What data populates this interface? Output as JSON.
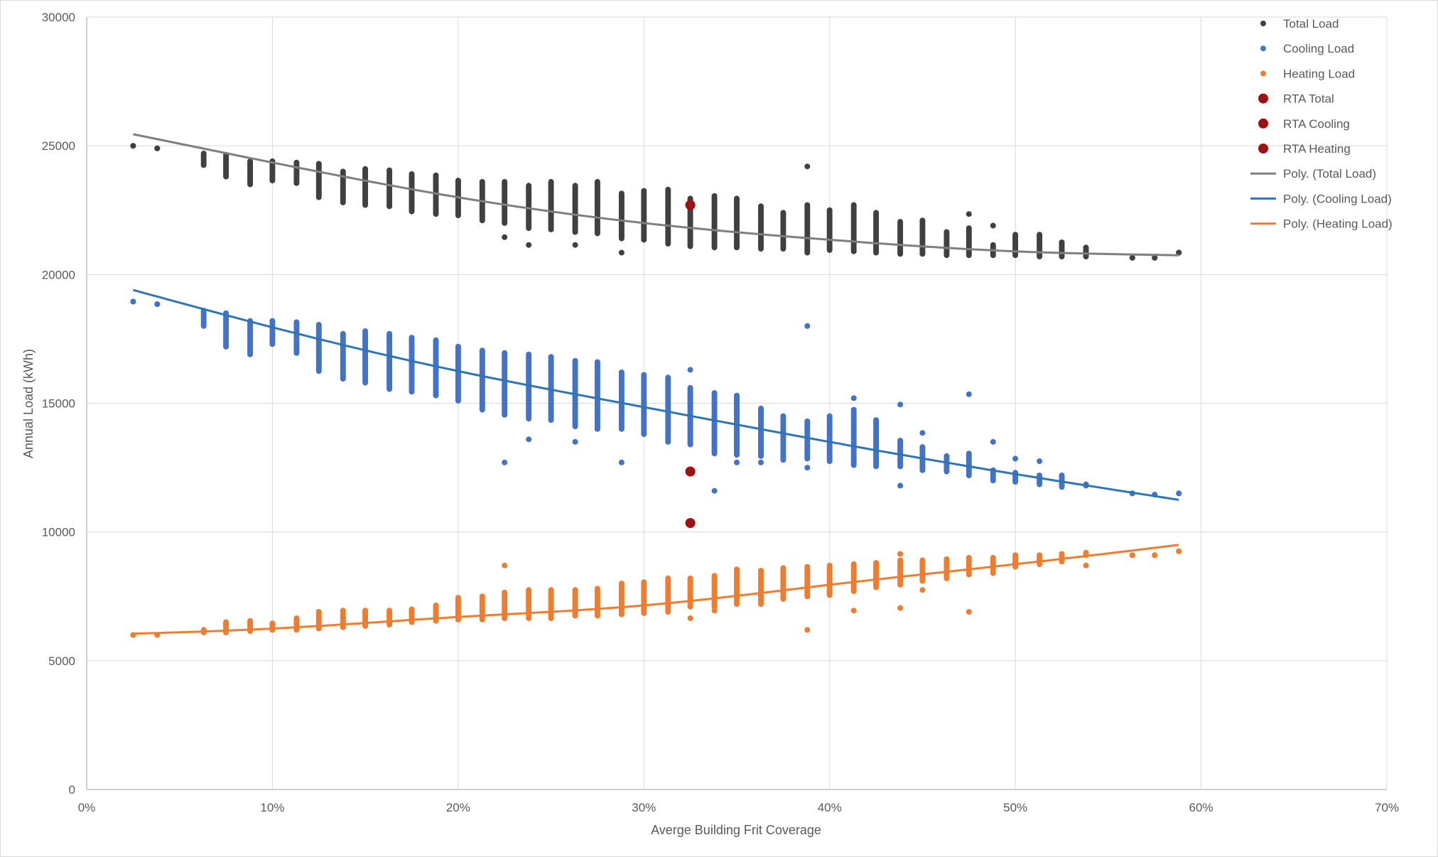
{
  "colors": {
    "total": "#404040",
    "cooling": "#4472C4",
    "heating": "#ED7D31",
    "rta_fill": "#8B1A1A",
    "rta_edge": "#C00000",
    "total_trend": "#7F7F7F",
    "cooling_trend": "#2E75B6",
    "heating_trend": "#ED7D31",
    "grid": "#D9D9D9",
    "axis": "#BFBFBF"
  },
  "chart_data": {
    "type": "scatter",
    "title": "",
    "xlabel": "Averge Building Frit Coverage",
    "ylabel": "Annual Load (kWh)",
    "xlim": [
      0,
      0.7
    ],
    "ylim": [
      0,
      30000
    ],
    "x_ticks": [
      0,
      0.1,
      0.2,
      0.3,
      0.4,
      0.5,
      0.6,
      0.7
    ],
    "x_tick_labels": [
      "0%",
      "10%",
      "20%",
      "30%",
      "40%",
      "50%",
      "60%",
      "70%"
    ],
    "y_ticks": [
      0,
      5000,
      10000,
      15000,
      20000,
      25000,
      30000
    ],
    "y_tick_labels": [
      "0",
      "5000",
      "10000",
      "15000",
      "20000",
      "25000",
      "30000"
    ],
    "grid": true,
    "legend_position": "top-right",
    "legend": [
      "Total Load",
      "Cooling Load",
      "Heating Load",
      "RTA Total",
      "RTA Cooling",
      "RTA Heating",
      "Poly. (Total Load)",
      "Poly. (Cooling Load)",
      "Poly. (Heating Load)"
    ],
    "x_columns": [
      0.025,
      0.038,
      0.063,
      0.075,
      0.088,
      0.1,
      0.113,
      0.125,
      0.138,
      0.15,
      0.163,
      0.175,
      0.188,
      0.2,
      0.213,
      0.225,
      0.238,
      0.25,
      0.263,
      0.275,
      0.288,
      0.3,
      0.313,
      0.325,
      0.338,
      0.35,
      0.363,
      0.375,
      0.388,
      0.4,
      0.413,
      0.425,
      0.438,
      0.45,
      0.463,
      0.475,
      0.488,
      0.5,
      0.513,
      0.525,
      0.538,
      0.563,
      0.575,
      0.588
    ],
    "series": [
      {
        "name": "Total Load",
        "ranges": [
          [
            25000,
            25000
          ],
          [
            24900,
            24900
          ],
          [
            24250,
            24700
          ],
          [
            23800,
            24650
          ],
          [
            23500,
            24400
          ],
          [
            23650,
            24400
          ],
          [
            23550,
            24350
          ],
          [
            23000,
            24300
          ],
          [
            22800,
            24000
          ],
          [
            22700,
            24100
          ],
          [
            22650,
            24050
          ],
          [
            22450,
            23900
          ],
          [
            22350,
            23850
          ],
          [
            22300,
            23650
          ],
          [
            22100,
            23600
          ],
          [
            22000,
            23600
          ],
          [
            21800,
            23450
          ],
          [
            21750,
            23600
          ],
          [
            21650,
            23450
          ],
          [
            21600,
            23600
          ],
          [
            21400,
            23150
          ],
          [
            21350,
            23250
          ],
          [
            21200,
            23300
          ],
          [
            21100,
            22950
          ],
          [
            21050,
            23050
          ],
          [
            21050,
            22950
          ],
          [
            21000,
            22650
          ],
          [
            21000,
            22400
          ],
          [
            20850,
            22700
          ],
          [
            20950,
            22500
          ],
          [
            20900,
            22700
          ],
          [
            20850,
            22400
          ],
          [
            20800,
            22050
          ],
          [
            20800,
            22100
          ],
          [
            20750,
            21650
          ],
          [
            20750,
            21800
          ],
          [
            20750,
            21150
          ],
          [
            20750,
            21550
          ],
          [
            20700,
            21550
          ],
          [
            20700,
            21250
          ],
          [
            20700,
            21050
          ],
          [
            20650,
            20650
          ],
          [
            20650,
            20650
          ],
          [
            20850,
            20850
          ]
        ],
        "outliers": [
          [
            0.225,
            21450
          ],
          [
            0.238,
            21150
          ],
          [
            0.263,
            21150
          ],
          [
            0.288,
            20850
          ],
          [
            0.388,
            24200
          ],
          [
            0.475,
            22350
          ],
          [
            0.488,
            21900
          ]
        ]
      },
      {
        "name": "Cooling Load",
        "ranges": [
          [
            18950,
            18950
          ],
          [
            18850,
            18850
          ],
          [
            18000,
            18600
          ],
          [
            17200,
            18500
          ],
          [
            16900,
            18200
          ],
          [
            17300,
            18200
          ],
          [
            16950,
            18150
          ],
          [
            16250,
            18050
          ],
          [
            15950,
            17700
          ],
          [
            15800,
            17800
          ],
          [
            15550,
            17700
          ],
          [
            15450,
            17550
          ],
          [
            15300,
            17450
          ],
          [
            15100,
            17200
          ],
          [
            14750,
            17050
          ],
          [
            14550,
            16950
          ],
          [
            14400,
            16900
          ],
          [
            14350,
            16800
          ],
          [
            14100,
            16650
          ],
          [
            14000,
            16600
          ],
          [
            14000,
            16200
          ],
          [
            13800,
            16100
          ],
          [
            13500,
            16000
          ],
          [
            13400,
            15600
          ],
          [
            13050,
            15400
          ],
          [
            13000,
            15300
          ],
          [
            12950,
            14800
          ],
          [
            12800,
            14500
          ],
          [
            12850,
            14300
          ],
          [
            12750,
            14500
          ],
          [
            12600,
            14750
          ],
          [
            12550,
            14350
          ],
          [
            12550,
            13550
          ],
          [
            12400,
            13300
          ],
          [
            12350,
            12950
          ],
          [
            12200,
            13050
          ],
          [
            12000,
            12400
          ],
          [
            11950,
            12300
          ],
          [
            11850,
            12200
          ],
          [
            11750,
            12200
          ],
          [
            11800,
            11850
          ],
          [
            11500,
            11500
          ],
          [
            11450,
            11450
          ],
          [
            11500,
            11500
          ]
        ],
        "outliers": [
          [
            0.225,
            12700
          ],
          [
            0.238,
            13600
          ],
          [
            0.263,
            13500
          ],
          [
            0.288,
            12700
          ],
          [
            0.325,
            16300
          ],
          [
            0.338,
            11600
          ],
          [
            0.35,
            12700
          ],
          [
            0.363,
            12700
          ],
          [
            0.388,
            18000
          ],
          [
            0.388,
            12500
          ],
          [
            0.413,
            15200
          ],
          [
            0.438,
            14950
          ],
          [
            0.438,
            11800
          ],
          [
            0.45,
            13850
          ],
          [
            0.475,
            15350
          ],
          [
            0.488,
            13500
          ],
          [
            0.5,
            12850
          ],
          [
            0.513,
            12750
          ]
        ]
      },
      {
        "name": "Heating Load",
        "ranges": [
          [
            6000,
            6000
          ],
          [
            6000,
            6000
          ],
          [
            6100,
            6200
          ],
          [
            6100,
            6500
          ],
          [
            6150,
            6550
          ],
          [
            6200,
            6450
          ],
          [
            6200,
            6650
          ],
          [
            6250,
            6900
          ],
          [
            6300,
            6950
          ],
          [
            6350,
            6950
          ],
          [
            6400,
            6950
          ],
          [
            6500,
            7000
          ],
          [
            6550,
            7150
          ],
          [
            6600,
            7450
          ],
          [
            6600,
            7500
          ],
          [
            6650,
            7650
          ],
          [
            6650,
            7750
          ],
          [
            6650,
            7750
          ],
          [
            6750,
            7750
          ],
          [
            6750,
            7800
          ],
          [
            6800,
            8000
          ],
          [
            6850,
            8050
          ],
          [
            6900,
            8200
          ],
          [
            7100,
            8200
          ],
          [
            7100,
            8300
          ],
          [
            7200,
            8550
          ],
          [
            7200,
            8500
          ],
          [
            7400,
            8600
          ],
          [
            7500,
            8650
          ],
          [
            7550,
            8700
          ],
          [
            7700,
            8750
          ],
          [
            7850,
            8800
          ],
          [
            7950,
            8900
          ],
          [
            8100,
            8900
          ],
          [
            8200,
            8950
          ],
          [
            8350,
            9000
          ],
          [
            8400,
            9000
          ],
          [
            8650,
            9100
          ],
          [
            8750,
            9100
          ],
          [
            8850,
            9150
          ],
          [
            9100,
            9200
          ],
          [
            9100,
            9100
          ],
          [
            9100,
            9100
          ],
          [
            9250,
            9250
          ]
        ],
        "outliers": [
          [
            0.225,
            8700
          ],
          [
            0.325,
            6650
          ],
          [
            0.338,
            6950
          ],
          [
            0.388,
            6200
          ],
          [
            0.413,
            6950
          ],
          [
            0.438,
            9150
          ],
          [
            0.438,
            7050
          ],
          [
            0.45,
            7750
          ],
          [
            0.475,
            6900
          ],
          [
            0.538,
            8700
          ]
        ]
      },
      {
        "name": "RTA Total",
        "points": [
          [
            0.325,
            22700
          ]
        ]
      },
      {
        "name": "RTA Cooling",
        "points": [
          [
            0.325,
            12350
          ]
        ]
      },
      {
        "name": "RTA Heating",
        "points": [
          [
            0.325,
            10350
          ]
        ]
      },
      {
        "name": "Poly. (Total Load)",
        "kind": "trendline",
        "points": [
          [
            0.025,
            25450
          ],
          [
            0.1,
            24350
          ],
          [
            0.2,
            23000
          ],
          [
            0.3,
            22000
          ],
          [
            0.4,
            21350
          ],
          [
            0.5,
            20900
          ],
          [
            0.588,
            20750
          ]
        ]
      },
      {
        "name": "Poly. (Cooling Load)",
        "kind": "trendline",
        "points": [
          [
            0.025,
            19400
          ],
          [
            0.1,
            17950
          ],
          [
            0.2,
            16250
          ],
          [
            0.3,
            14850
          ],
          [
            0.4,
            13500
          ],
          [
            0.5,
            12250
          ],
          [
            0.588,
            11250
          ]
        ]
      },
      {
        "name": "Poly. (Heating Load)",
        "kind": "trendline",
        "points": [
          [
            0.025,
            6050
          ],
          [
            0.1,
            6250
          ],
          [
            0.2,
            6700
          ],
          [
            0.3,
            7150
          ],
          [
            0.4,
            7950
          ],
          [
            0.5,
            8750
          ],
          [
            0.588,
            9500
          ]
        ]
      }
    ]
  }
}
